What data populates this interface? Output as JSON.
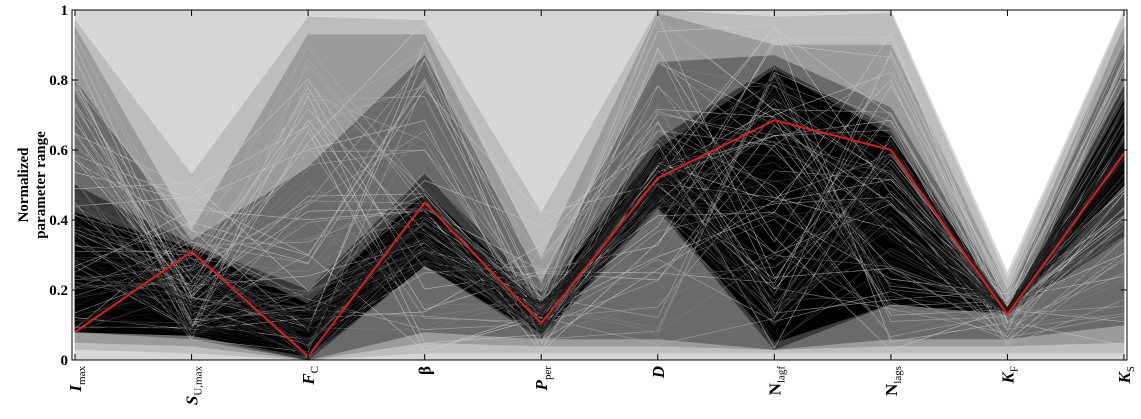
{
  "chart_data": {
    "type": "line",
    "title": "",
    "ylabel": [
      "Normalized",
      "parameter range"
    ],
    "ylim": [
      0,
      1
    ],
    "yticks": [
      0,
      0.2,
      0.4,
      0.6,
      0.8,
      1
    ],
    "ytick_labels": [
      "0",
      "0.2",
      "0.4",
      "0.6",
      "0.8",
      "1"
    ],
    "categories": [
      {
        "main": "I",
        "sub": "max",
        "italic": true
      },
      {
        "main": "S",
        "sub": "U,max",
        "italic": true
      },
      {
        "main": "F",
        "sub": "C",
        "italic": true
      },
      {
        "main": "β",
        "sub": "",
        "italic": false
      },
      {
        "main": "P",
        "sub": "per",
        "italic": true
      },
      {
        "main": "D",
        "sub": "",
        "italic": true
      },
      {
        "main": "N",
        "sub": "lagf",
        "italic": false
      },
      {
        "main": "N",
        "sub": "lags",
        "italic": false
      },
      {
        "main": "K",
        "sub": "F",
        "italic": true
      },
      {
        "main": "K",
        "sub": "S",
        "italic": true
      }
    ],
    "bands": [
      {
        "shade": "lightest",
        "color": "#d6d6d6",
        "upper": [
          1.0,
          1.0,
          1.0,
          1.0,
          1.0,
          1.0,
          1.0,
          1.0,
          0.25,
          1.0
        ],
        "lower": [
          0.0,
          0.0,
          0.0,
          0.0,
          0.0,
          0.0,
          0.0,
          0.0,
          0.0,
          0.0
        ]
      },
      {
        "shade": "light",
        "color": "#bdbdbd",
        "upper": [
          0.97,
          0.53,
          0.98,
          0.97,
          0.42,
          1.0,
          0.98,
          0.99,
          0.23,
          0.99
        ],
        "lower": [
          0.03,
          0.02,
          0.0,
          0.02,
          0.02,
          0.02,
          0.02,
          0.02,
          0.02,
          0.02
        ]
      },
      {
        "shade": "mid",
        "color": "#9b9b9b",
        "upper": [
          0.95,
          0.37,
          0.93,
          0.93,
          0.29,
          0.99,
          0.9,
          0.9,
          0.2,
          0.95
        ],
        "lower": [
          0.05,
          0.04,
          0.0,
          0.05,
          0.04,
          0.04,
          0.03,
          0.04,
          0.04,
          0.05
        ]
      },
      {
        "shade": "dark",
        "color": "#6a6a6a",
        "upper": [
          0.8,
          0.34,
          0.55,
          0.87,
          0.22,
          0.85,
          0.87,
          0.72,
          0.17,
          0.9
        ],
        "lower": [
          0.08,
          0.06,
          0.0,
          0.08,
          0.06,
          0.06,
          0.03,
          0.06,
          0.06,
          0.1
        ]
      },
      {
        "shade": "darker",
        "color": "#3a3a3a",
        "upper": [
          0.5,
          0.33,
          0.2,
          0.53,
          0.19,
          0.63,
          0.84,
          0.66,
          0.15,
          0.78
        ],
        "lower": [
          0.08,
          0.07,
          0.0,
          0.27,
          0.06,
          0.43,
          0.03,
          0.16,
          0.13,
          0.35
        ]
      },
      {
        "shade": "core",
        "color": "#000000",
        "upper": [
          0.42,
          0.32,
          0.16,
          0.48,
          0.17,
          0.6,
          0.83,
          0.64,
          0.15,
          0.74
        ],
        "lower": [
          0.08,
          0.07,
          0.01,
          0.27,
          0.07,
          0.44,
          0.05,
          0.16,
          0.13,
          0.5
        ]
      }
    ],
    "highlight": {
      "color": "#d42020",
      "values": [
        0.08,
        0.31,
        0.01,
        0.45,
        0.105,
        0.52,
        0.685,
        0.6,
        0.13,
        0.59
      ]
    },
    "grid": false,
    "legend": "none"
  }
}
